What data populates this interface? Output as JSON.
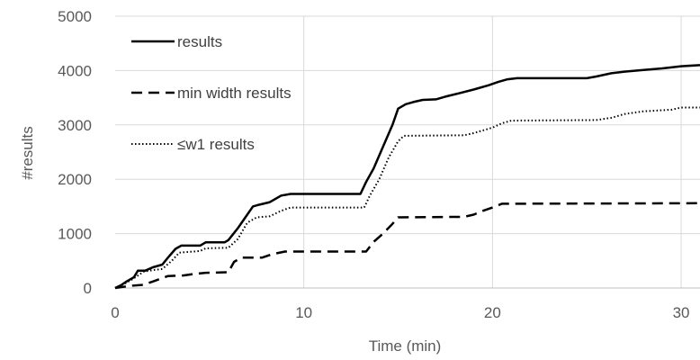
{
  "chart_data": {
    "type": "line",
    "title": "",
    "xlabel": "Time (min)",
    "ylabel": "#results",
    "xlim": [
      0,
      31
    ],
    "ylim": [
      0,
      5000
    ],
    "x_ticks": [
      0,
      10,
      20,
      30
    ],
    "y_ticks": [
      0,
      1000,
      2000,
      3000,
      4000,
      5000
    ],
    "grid": true,
    "legend_position": "top-left",
    "series": [
      {
        "name": "results",
        "style": "solid",
        "points": [
          [
            0,
            0
          ],
          [
            0.3,
            50
          ],
          [
            0.6,
            120
          ],
          [
            1.0,
            200
          ],
          [
            1.2,
            320
          ],
          [
            1.6,
            320
          ],
          [
            2.0,
            380
          ],
          [
            2.5,
            430
          ],
          [
            2.8,
            560
          ],
          [
            3.2,
            720
          ],
          [
            3.5,
            780
          ],
          [
            4.5,
            780
          ],
          [
            4.8,
            840
          ],
          [
            5.8,
            840
          ],
          [
            6.0,
            880
          ],
          [
            6.5,
            1100
          ],
          [
            7.0,
            1350
          ],
          [
            7.3,
            1500
          ],
          [
            7.6,
            1530
          ],
          [
            8.2,
            1580
          ],
          [
            8.8,
            1700
          ],
          [
            9.3,
            1730
          ],
          [
            13.0,
            1730
          ],
          [
            13.3,
            1950
          ],
          [
            13.7,
            2200
          ],
          [
            14.2,
            2600
          ],
          [
            14.7,
            3000
          ],
          [
            15.0,
            3300
          ],
          [
            15.4,
            3380
          ],
          [
            15.8,
            3420
          ],
          [
            16.3,
            3460
          ],
          [
            17.0,
            3470
          ],
          [
            17.5,
            3520
          ],
          [
            18.2,
            3580
          ],
          [
            19.0,
            3650
          ],
          [
            19.8,
            3730
          ],
          [
            20.3,
            3790
          ],
          [
            20.8,
            3840
          ],
          [
            21.3,
            3860
          ],
          [
            25.0,
            3860
          ],
          [
            25.5,
            3890
          ],
          [
            26.3,
            3950
          ],
          [
            27.0,
            3980
          ],
          [
            28.0,
            4010
          ],
          [
            29.0,
            4040
          ],
          [
            30.0,
            4080
          ],
          [
            31.0,
            4100
          ]
        ]
      },
      {
        "name": "min width results",
        "style": "dashed",
        "points": [
          [
            0,
            0
          ],
          [
            0.8,
            40
          ],
          [
            1.5,
            60
          ],
          [
            2.0,
            120
          ],
          [
            2.8,
            220
          ],
          [
            3.6,
            230
          ],
          [
            4.2,
            260
          ],
          [
            4.8,
            280
          ],
          [
            6.0,
            290
          ],
          [
            6.3,
            480
          ],
          [
            6.7,
            560
          ],
          [
            7.8,
            560
          ],
          [
            8.3,
            620
          ],
          [
            9.0,
            670
          ],
          [
            13.3,
            670
          ],
          [
            13.7,
            850
          ],
          [
            14.2,
            1000
          ],
          [
            14.7,
            1180
          ],
          [
            15.0,
            1300
          ],
          [
            18.5,
            1310
          ],
          [
            19.0,
            1350
          ],
          [
            19.5,
            1420
          ],
          [
            20.0,
            1480
          ],
          [
            20.5,
            1550
          ],
          [
            31.0,
            1560
          ]
        ]
      },
      {
        "name": "≤w1 results",
        "style": "dotted",
        "points": [
          [
            0,
            0
          ],
          [
            0.5,
            80
          ],
          [
            1.0,
            180
          ],
          [
            1.5,
            300
          ],
          [
            2.0,
            330
          ],
          [
            2.5,
            350
          ],
          [
            3.0,
            500
          ],
          [
            3.4,
            650
          ],
          [
            4.5,
            680
          ],
          [
            4.8,
            730
          ],
          [
            6.0,
            740
          ],
          [
            6.5,
            900
          ],
          [
            7.0,
            1200
          ],
          [
            7.5,
            1300
          ],
          [
            8.2,
            1320
          ],
          [
            8.8,
            1420
          ],
          [
            9.3,
            1480
          ],
          [
            13.2,
            1480
          ],
          [
            13.5,
            1700
          ],
          [
            14.0,
            2000
          ],
          [
            14.5,
            2400
          ],
          [
            15.0,
            2700
          ],
          [
            15.3,
            2800
          ],
          [
            18.5,
            2810
          ],
          [
            19.0,
            2850
          ],
          [
            20.0,
            2950
          ],
          [
            20.5,
            3030
          ],
          [
            21.0,
            3080
          ],
          [
            25.5,
            3090
          ],
          [
            26.3,
            3130
          ],
          [
            27.0,
            3200
          ],
          [
            28.0,
            3250
          ],
          [
            29.5,
            3280
          ],
          [
            30.0,
            3320
          ],
          [
            31.0,
            3320
          ]
        ]
      }
    ]
  }
}
